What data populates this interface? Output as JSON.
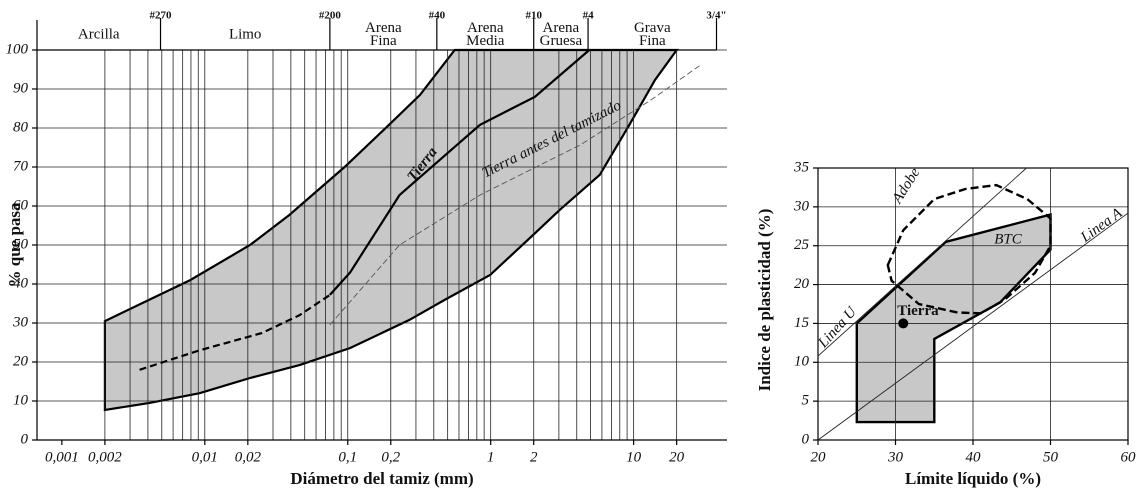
{
  "chart_data": [
    {
      "type": "line",
      "x_label": "Diámetro del tamiz (mm)",
      "y_label": "% que pasa",
      "xscale": "log",
      "xlim": [
        0.00067,
        45
      ],
      "ylim": [
        0,
        100
      ],
      "xticks": [
        {
          "value": 0.001,
          "label": "0,001"
        },
        {
          "value": 0.002,
          "label": "0,002"
        },
        {
          "value": 0.01,
          "label": "0,01"
        },
        {
          "value": 0.02,
          "label": "0,02"
        },
        {
          "value": 0.1,
          "label": "0,1"
        },
        {
          "value": 0.2,
          "label": "0,2"
        },
        1,
        2,
        10,
        20
      ],
      "yticks": [
        0,
        10,
        20,
        30,
        40,
        50,
        60,
        70,
        80,
        90,
        100
      ],
      "grid": true,
      "x_grid": [
        0.002,
        0.003,
        0.004,
        0.005,
        0.006,
        0.007,
        0.008,
        0.009,
        0.01,
        0.02,
        0.03,
        0.04,
        0.05,
        0.06,
        0.07,
        0.08,
        0.09,
        0.1,
        0.2,
        0.3,
        0.4,
        0.5,
        0.6,
        0.7,
        0.8,
        0.9,
        1,
        2,
        3,
        4,
        5,
        6,
        7,
        8,
        9,
        10,
        20
      ],
      "sieves": [
        {
          "label": "#270",
          "x": 0.0049
        },
        {
          "label": "#200",
          "x": 0.075
        },
        {
          "label": "#40",
          "x": 0.42
        },
        {
          "label": "#10",
          "x": 2
        },
        {
          "label": "#4",
          "x": 4.8
        },
        {
          "label": "3/4\"",
          "x": 38
        }
      ],
      "fractions": [
        {
          "label": [
            "Arcilla"
          ]
        },
        {
          "label": [
            "Limo"
          ]
        },
        {
          "label": [
            "Arena",
            "Fina"
          ]
        },
        {
          "label": [
            "Arena",
            "Media"
          ]
        },
        {
          "label": [
            "Arena",
            "Gruesa"
          ]
        },
        {
          "label": [
            "Grava",
            "Fina"
          ]
        }
      ],
      "envelope": {
        "color": "#c8c8c8",
        "x": [
          0.002,
          0.0041,
          0.0079,
          0.0207,
          0.039,
          0.095,
          0.197,
          0.32,
          0.56,
          20,
          14.1,
          9.4,
          5.8,
          3.04,
          2.04,
          0.99,
          0.48,
          0.27,
          0.104,
          0.046,
          0.0207,
          0.0092,
          0.0041,
          0.002
        ],
        "y": [
          30.5,
          36,
          41,
          50,
          57.7,
          70,
          81,
          88.5,
          100,
          100,
          92.3,
          81,
          68,
          59,
          53,
          42.3,
          36,
          30.8,
          23.6,
          19.2,
          15.9,
          12,
          9.5,
          7.7
        ]
      },
      "curves": [
        {
          "x": [
            0.0035,
            0.0092,
            0.025,
            0.046,
            0.075
          ],
          "y": [
            18,
            23,
            27.4,
            32,
            37.2
          ],
          "dash": true,
          "width": 2.2
        },
        {
          "x": [
            0.075,
            0.104,
            0.23,
            0.84,
            2.04,
            4.9
          ],
          "y": [
            37.2,
            43,
            62.8,
            80.8,
            88,
            100
          ],
          "dash": false,
          "width": 2.2
        },
        {
          "x": [
            0.075,
            0.23,
            0.84,
            4.2,
            13,
            29
          ],
          "y": [
            29.5,
            50,
            62.8,
            75.6,
            87,
            96
          ],
          "dash": true,
          "width": 0.9
        }
      ],
      "annotations": [
        "Tierra",
        "Tierra antes del tamizado"
      ]
    },
    {
      "type": "scatter",
      "x_label": "Límite líquido (%)",
      "y_label": "Indice de plasticidad (%)",
      "xlim": [
        20,
        60
      ],
      "ylim": [
        0,
        35
      ],
      "xticks": [
        20,
        30,
        40,
        50,
        60
      ],
      "yticks": [
        0,
        5,
        10,
        15,
        20,
        25,
        30,
        35
      ],
      "grid": true,
      "lines": [
        {
          "label": "Linea U",
          "x": [
            20,
            46.9
          ],
          "y": [
            10.8,
            35
          ]
        },
        {
          "label": "Linea A",
          "x": [
            20,
            60
          ],
          "y": [
            0,
            29.2
          ]
        }
      ],
      "regions": [
        {
          "label": "BTC",
          "x": [
            25,
            35,
            35,
            43.5,
            50,
            50,
            36.5,
            25
          ],
          "y": [
            2.3,
            2.3,
            13,
            17.7,
            24.5,
            29,
            25.5,
            15
          ],
          "fill": "#c8c8c8",
          "dash": false
        },
        {
          "label": "Adobe",
          "x": [
            29,
            31,
            35,
            39,
            43,
            47,
            50,
            50,
            48,
            44,
            41,
            38,
            33,
            29.5
          ],
          "y": [
            22.5,
            27,
            31,
            32.3,
            32.8,
            31,
            28.5,
            25,
            21.5,
            18,
            16.3,
            16.4,
            17.5,
            20.5
          ],
          "fill": "none",
          "dash": true
        }
      ],
      "points": [
        {
          "label": "Tierra",
          "x": 31,
          "y": 15
        }
      ]
    }
  ]
}
